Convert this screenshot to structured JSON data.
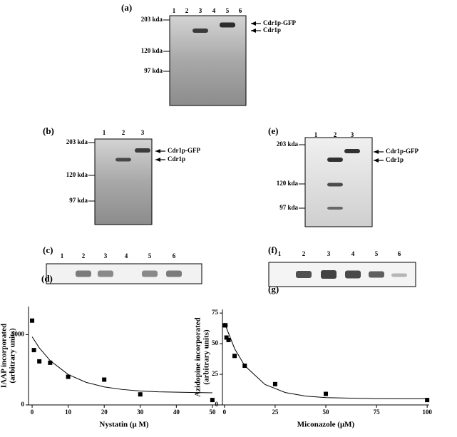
{
  "gels": {
    "a": {
      "label": "(a)",
      "lanes": [
        "1",
        "2",
        "3",
        "4",
        "5",
        "6"
      ],
      "markers": [
        "203 kda",
        "120 kda",
        "97 kda"
      ],
      "arrows": [
        "Cdr1p-GFP",
        "Cdr1p"
      ]
    },
    "b": {
      "label": "(b)",
      "lanes": [
        "1",
        "2",
        "3"
      ],
      "markers": [
        "203 kda",
        "120 kda",
        "97 kda"
      ],
      "arrows": [
        "Cdr1p-GFP",
        "Cdr1p"
      ]
    },
    "e": {
      "label": "(e)",
      "lanes": [
        "1",
        "2",
        "3"
      ],
      "markers": [
        "203 kda",
        "120 kda",
        "97 kda"
      ],
      "arrows": [
        "Cdr1p-GFP",
        "Cdr1p"
      ]
    },
    "c": {
      "label": "(c)",
      "lanes": [
        "1",
        "2",
        "3",
        "4",
        "5",
        "6"
      ]
    },
    "f": {
      "label": "(f)",
      "lanes": [
        "1",
        "2",
        "3",
        "4",
        "5",
        "6"
      ]
    }
  },
  "chart_data": [
    {
      "type": "scatter",
      "panel": "(d)",
      "ylabel": [
        "IAAP incorporated",
        "(arbitrary units)"
      ],
      "xlabel": "Nystatin (μ M)",
      "x": [
        0,
        0.5,
        2,
        5,
        10,
        20,
        30,
        50
      ],
      "values": [
        1200,
        780,
        620,
        600,
        400,
        360,
        150,
        70
      ],
      "color": "#000000",
      "curve": {
        "x": [
          0,
          2,
          5,
          10,
          15,
          20,
          25,
          30,
          35,
          50
        ],
        "y": [
          970,
          811,
          631,
          433,
          321,
          256,
          220,
          198,
          186,
          173
        ]
      },
      "xlim": [
        -1,
        52
      ],
      "ylim": [
        0,
        1400
      ],
      "xticks": [
        0,
        10,
        20,
        30,
        40,
        50
      ],
      "yticks": [
        0,
        1000
      ]
    },
    {
      "type": "scatter",
      "panel": "(g)",
      "ylabel": [
        "Azidopine incorporated",
        "(arbitrary units)"
      ],
      "xlabel": "Miconazole (μM)",
      "x": [
        0,
        0.5,
        1,
        2,
        5,
        10,
        25,
        50,
        100
      ],
      "values": [
        65,
        65,
        55,
        53,
        40,
        32,
        17,
        9,
        4
      ],
      "color": "#000000",
      "curve": {
        "x": [
          0,
          5,
          10,
          20,
          30,
          40,
          50,
          75,
          100
        ],
        "y": [
          67,
          46,
          32,
          16.7,
          10.1,
          7.2,
          6.0,
          5.1,
          5.0
        ]
      },
      "xlim": [
        -1,
        101
      ],
      "ylim": [
        0,
        78
      ],
      "xticks": [
        0,
        25,
        50,
        75,
        100
      ],
      "yticks": [
        0,
        25,
        50,
        75
      ]
    }
  ]
}
